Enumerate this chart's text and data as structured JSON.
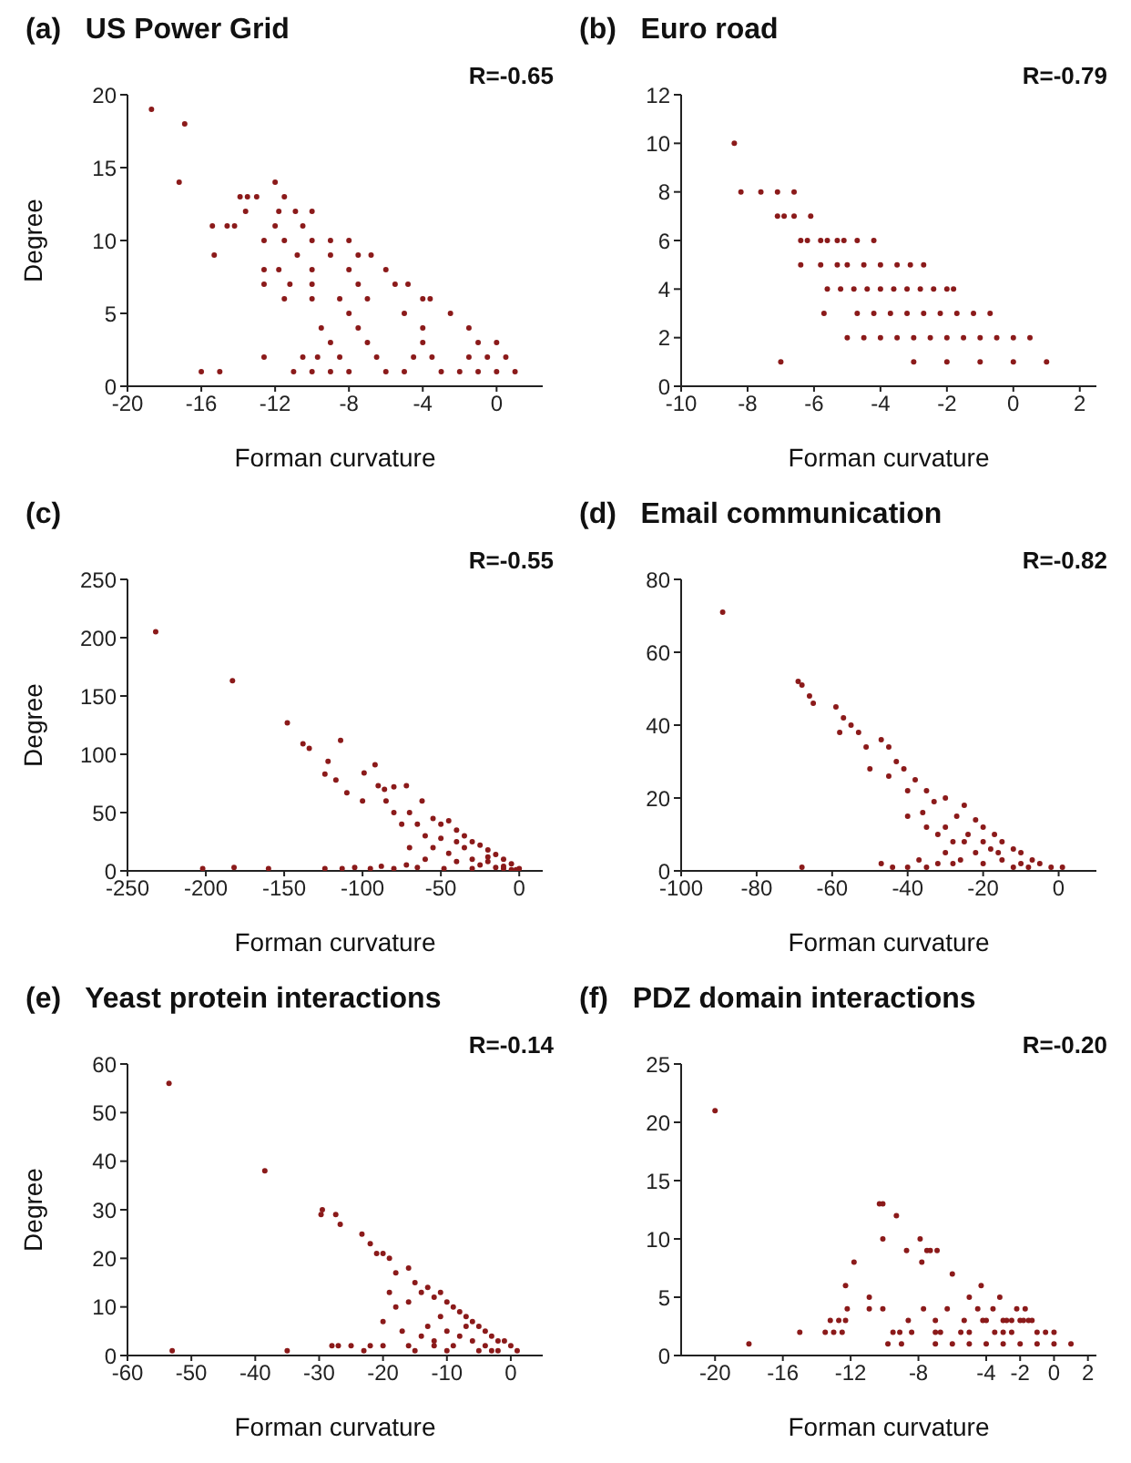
{
  "chart_data": [
    {
      "type": "scatter",
      "title": "(a)   US Power Grid",
      "xlabel": "Forman curvature",
      "ylabel": "Degree",
      "annotations": [
        "R=-0.65"
      ],
      "xlim": [
        -20,
        2.5
      ],
      "xticks": [
        -20,
        -16,
        -12,
        -8,
        -4,
        0
      ],
      "ylim": [
        0,
        20
      ],
      "yticks": [
        0,
        5,
        10,
        15,
        20
      ],
      "marker": "circle",
      "grid": false,
      "legend": false,
      "series": [
        {
          "color": "#8b1a1a",
          "x": [
            -18.7,
            -16.9,
            -17.2,
            -16,
            -15,
            -15.4,
            -15.3,
            -14.6,
            -14.2,
            -13.9,
            -13.6,
            -13.5,
            -13,
            -12.6,
            -12.6,
            -12.6,
            -12.6,
            -12,
            -12,
            -11.8,
            -11.8,
            -11.5,
            -11.5,
            -11.2,
            -11.5,
            -11,
            -10.9,
            -10.5,
            -10.8,
            -10.5,
            -10,
            -10,
            -10,
            -10,
            -10,
            -10,
            -9.7,
            -9.5,
            -9,
            -9,
            -9,
            -9,
            -8.5,
            -8.5,
            -8,
            -8,
            -8,
            -8,
            -7.5,
            -7.5,
            -7.5,
            -7,
            -7,
            -6.8,
            -6.5,
            -6,
            -6,
            -5.5,
            -5,
            -5,
            -4.8,
            -4.5,
            -4,
            -4,
            -4,
            -3.6,
            -3.5,
            -3,
            -2.5,
            -2,
            -1.5,
            -1.5,
            -1,
            -1,
            -0.5,
            0,
            0,
            0.5,
            1
          ],
          "values": [
            19,
            18,
            14,
            1,
            1,
            11,
            9,
            11,
            11,
            13,
            12,
            13,
            13,
            10,
            8,
            7,
            2,
            14,
            11,
            12,
            8,
            13,
            10,
            7,
            6,
            1,
            12,
            11,
            9,
            2,
            1,
            12,
            10,
            8,
            6,
            7,
            2,
            4,
            10,
            9,
            1,
            3,
            2,
            6,
            10,
            8,
            5,
            1,
            9,
            7,
            4,
            3,
            6,
            9,
            2,
            8,
            1,
            7,
            5,
            1,
            7,
            2,
            4,
            3,
            6,
            6,
            2,
            1,
            5,
            1,
            4,
            2,
            3,
            1,
            2,
            3,
            1,
            2,
            1
          ]
        }
      ]
    },
    {
      "type": "scatter",
      "title": "(b)   Euro road",
      "xlabel": "Forman curvature",
      "annotations": [
        "R=-0.79"
      ],
      "xlim": [
        -10,
        2.5
      ],
      "xticks": [
        -10,
        -8,
        -6,
        -4,
        -2,
        0,
        2
      ],
      "ylim": [
        0,
        12
      ],
      "yticks": [
        0,
        2,
        4,
        6,
        8,
        10,
        12
      ],
      "marker": "circle",
      "grid": false,
      "legend": false,
      "series": [
        {
          "color": "#8b1a1a",
          "x": [
            -8.4,
            -8.2,
            -7.6,
            -7.1,
            -6.6,
            -7.1,
            -6.9,
            -6.6,
            -6.1,
            -7,
            -6.4,
            -6.2,
            -5.8,
            -5.6,
            -5.3,
            -5.1,
            -4.7,
            -4.2,
            -6.4,
            -5.8,
            -5.3,
            -5,
            -4.5,
            -4,
            -3.5,
            -3.1,
            -2.7,
            -5.6,
            -5.2,
            -4.8,
            -4.4,
            -4,
            -3.6,
            -3.2,
            -2.8,
            -2.4,
            -2,
            -1.8,
            -5.7,
            -4.7,
            -4.2,
            -3.7,
            -3.2,
            -2.7,
            -2.2,
            -1.7,
            -1.2,
            -0.7,
            -5,
            -4.5,
            -4,
            -3.5,
            -3,
            -2.5,
            -2,
            -1.5,
            -1,
            -0.5,
            0,
            0.5,
            -3,
            -2,
            -1,
            0,
            1
          ],
          "values": [
            10,
            8,
            8,
            8,
            8,
            7,
            7,
            7,
            7,
            1,
            6,
            6,
            6,
            6,
            6,
            6,
            6,
            6,
            5,
            5,
            5,
            5,
            5,
            5,
            5,
            5,
            5,
            4,
            4,
            4,
            4,
            4,
            4,
            4,
            4,
            4,
            4,
            4,
            3,
            3,
            3,
            3,
            3,
            3,
            3,
            3,
            3,
            3,
            2,
            2,
            2,
            2,
            2,
            2,
            2,
            2,
            2,
            2,
            2,
            2,
            1,
            1,
            1,
            1,
            1
          ]
        }
      ]
    },
    {
      "type": "scatter",
      "title": "(c)",
      "xlabel": "Forman curvature",
      "ylabel": "Degree",
      "annotations": [
        "R=-0.55"
      ],
      "xlim": [
        -250,
        15
      ],
      "xticks": [
        -250,
        -200,
        -150,
        -100,
        -50,
        0
      ],
      "ylim": [
        0,
        250
      ],
      "yticks": [
        0,
        50,
        100,
        150,
        200,
        250
      ],
      "marker": "circle",
      "grid": false,
      "legend": false,
      "series": [
        {
          "color": "#8b1a1a",
          "x": [
            -232,
            -183,
            -148,
            -138,
            -134,
            -114,
            -122,
            -124,
            -117,
            -110,
            -99,
            -92,
            -90,
            -86,
            -80,
            -72,
            -85,
            -100,
            -70,
            -62,
            -55,
            -50,
            -45,
            -40,
            -35,
            -30,
            -25,
            -20,
            -15,
            -10,
            -5,
            0,
            -202,
            -182,
            -160,
            -124,
            -113,
            -105,
            -95,
            -88,
            -80,
            -72,
            -65,
            -60,
            -55,
            -50,
            -45,
            -40,
            -35,
            -30,
            -25,
            -20,
            -15,
            -10,
            -5,
            -60,
            -70,
            -65,
            -80,
            -75,
            -48,
            -30,
            -40,
            -20,
            -10,
            -2
          ],
          "values": [
            205,
            163,
            127,
            109,
            105,
            112,
            94,
            83,
            78,
            67,
            84,
            91,
            73,
            70,
            72,
            73,
            60,
            60,
            50,
            60,
            45,
            40,
            43,
            35,
            30,
            25,
            22,
            18,
            14,
            10,
            6,
            2,
            2,
            3,
            2,
            2,
            2,
            3,
            2,
            4,
            2,
            5,
            3,
            10,
            20,
            28,
            15,
            8,
            20,
            10,
            5,
            8,
            3,
            4,
            1,
            30,
            20,
            40,
            50,
            40,
            2,
            2,
            25,
            12,
            2,
            1
          ]
        }
      ]
    },
    {
      "type": "scatter",
      "title": "(d)   Email communication",
      "xlabel": "Forman curvature",
      "annotations": [
        "R=-0.82"
      ],
      "xlim": [
        -100,
        10
      ],
      "xticks": [
        -100,
        -80,
        -60,
        -40,
        -20,
        0
      ],
      "ylim": [
        0,
        80
      ],
      "yticks": [
        0,
        20,
        40,
        60,
        80
      ],
      "marker": "circle",
      "grid": false,
      "legend": false,
      "series": [
        {
          "color": "#8b1a1a",
          "x": [
            -89,
            -69,
            -68,
            -66,
            -65,
            -59,
            -58,
            -57,
            -55,
            -53,
            -51,
            -50,
            -47,
            -45,
            -43,
            -45,
            -41,
            -38,
            -40,
            -35,
            -33,
            -30,
            -27,
            -25,
            -22,
            -20,
            -17,
            -15,
            -12,
            -10,
            -7,
            -5,
            -2,
            1,
            -68,
            -47,
            -44,
            -40,
            -37,
            -35,
            -32,
            -30,
            -28,
            -25,
            -22,
            -20,
            -18,
            -15,
            -12,
            -35,
            -30,
            -28,
            -24,
            -20,
            -26,
            -16,
            -10,
            -8,
            -40,
            -36,
            -32
          ],
          "values": [
            71,
            52,
            51,
            48,
            46,
            45,
            38,
            42,
            40,
            38,
            34,
            28,
            36,
            34,
            30,
            26,
            28,
            25,
            22,
            22,
            19,
            20,
            15,
            18,
            14,
            12,
            10,
            8,
            6,
            5,
            3,
            2,
            1,
            1,
            1,
            2,
            1,
            1,
            3,
            1,
            2,
            5,
            2,
            8,
            5,
            2,
            6,
            3,
            1,
            12,
            12,
            8,
            10,
            8,
            3,
            5,
            2,
            1,
            15,
            16,
            10
          ]
        }
      ]
    },
    {
      "type": "scatter",
      "title": "(e)   Yeast protein interactions",
      "xlabel": "Forman curvature",
      "ylabel": "Degree",
      "annotations": [
        "R=-0.14"
      ],
      "xlim": [
        -60,
        5
      ],
      "xticks": [
        -60,
        -50,
        -40,
        -30,
        -20,
        -10,
        0
      ],
      "ylim": [
        0,
        60
      ],
      "yticks": [
        0,
        10,
        20,
        30,
        40,
        50,
        60
      ],
      "marker": "circle",
      "grid": false,
      "legend": false,
      "series": [
        {
          "color": "#8b1a1a",
          "x": [
            -53.5,
            -53,
            -38.5,
            -35,
            -29.7,
            -29.5,
            -27.4,
            -26.7,
            -23.3,
            -22,
            -21,
            -20,
            -19,
            -18,
            -16,
            -15,
            -14,
            -13,
            -12,
            -11,
            -10,
            -9,
            -8,
            -7,
            -6,
            -5,
            -4,
            -3,
            -2,
            -1,
            0,
            1,
            -28,
            -27,
            -25,
            -23,
            -22,
            -20,
            -20,
            -19,
            -18,
            -17,
            -16,
            -15,
            -14,
            -13,
            -12,
            -11,
            -10,
            -9,
            -8,
            -7,
            -6,
            -5,
            -4,
            -3,
            -2,
            -12,
            -10,
            -16
          ],
          "values": [
            56,
            1,
            38,
            1,
            29,
            30,
            29,
            27,
            25,
            23,
            21,
            21,
            20,
            17,
            18,
            15,
            13,
            14,
            12,
            13,
            11,
            10,
            9,
            8,
            7,
            6,
            5,
            4,
            3,
            3,
            2,
            1,
            2,
            2,
            2,
            1,
            2,
            2,
            7,
            13,
            10,
            5,
            2,
            1,
            4,
            6,
            3,
            8,
            5,
            2,
            4,
            6,
            3,
            1,
            2,
            1,
            1,
            2,
            1,
            11
          ]
        }
      ]
    },
    {
      "type": "scatter",
      "title": "(f)   PDZ domain interactions",
      "xlabel": "Forman curvature",
      "annotations": [
        "R=-0.20"
      ],
      "xlim": [
        -22,
        2.5
      ],
      "xticks": [
        -20,
        -16,
        -12,
        -8,
        -4,
        -2,
        0,
        2
      ],
      "ylim": [
        0,
        25
      ],
      "yticks": [
        0,
        5,
        10,
        15,
        20,
        25
      ],
      "marker": "circle",
      "grid": false,
      "legend": false,
      "series": [
        {
          "color": "#8b1a1a",
          "x": [
            -20,
            -18,
            -15,
            -13.5,
            -13.2,
            -13,
            -12.7,
            -12.5,
            -12.3,
            -12.2,
            -12.3,
            -11.8,
            -10.9,
            -10.9,
            -10.3,
            -10.1,
            -10.1,
            -10.1,
            -9.8,
            -9.5,
            -9.3,
            -9.1,
            -9,
            -8.7,
            -8.6,
            -8.4,
            -7.9,
            -7.8,
            -7.7,
            -7.5,
            -7.3,
            -6.9,
            -7,
            -7,
            -7,
            -6.7,
            -6.3,
            -6,
            -6,
            -5.5,
            -5.3,
            -5,
            -5,
            -5,
            -4.5,
            -4.3,
            -4.2,
            -4,
            -4,
            -3.6,
            -3.5,
            -3.2,
            -3,
            -3,
            -3,
            -2.8,
            -2.5,
            -2.5,
            -2.2,
            -2,
            -2,
            -1.8,
            -1.7,
            -1.5,
            -1.3,
            -1,
            -1,
            -0.5,
            0,
            0,
            1
          ],
          "values": [
            21,
            1,
            2,
            2,
            3,
            2,
            3,
            2,
            6,
            4,
            3,
            8,
            5,
            4,
            13,
            13,
            10,
            4,
            1,
            2,
            12,
            2,
            1,
            9,
            3,
            2,
            10,
            8,
            4,
            9,
            9,
            9,
            3,
            2,
            1,
            2,
            4,
            7,
            1,
            2,
            3,
            5,
            2,
            1,
            4,
            6,
            3,
            3,
            1,
            4,
            2,
            5,
            3,
            2,
            1,
            3,
            3,
            2,
            4,
            3,
            1,
            3,
            4,
            3,
            3,
            2,
            1,
            2,
            2,
            1,
            1
          ]
        }
      ]
    }
  ]
}
